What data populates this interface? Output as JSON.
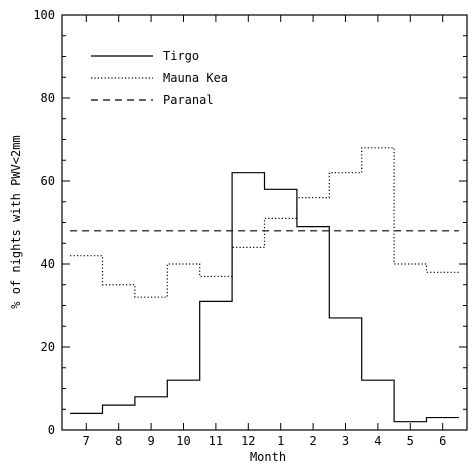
{
  "chart_data": {
    "type": "line",
    "style": "step",
    "xlabel": "Month",
    "ylabel": "% of nights with PWV<2mm",
    "categories": [
      "7",
      "8",
      "9",
      "10",
      "11",
      "12",
      "1",
      "2",
      "3",
      "4",
      "5",
      "6"
    ],
    "ylim": [
      0,
      100
    ],
    "yticks": [
      0,
      20,
      40,
      60,
      80,
      100
    ],
    "grid": false,
    "legend_position": "top-left",
    "series": [
      {
        "name": "Tirgo",
        "line_style": "solid",
        "values": [
          4,
          6,
          8,
          12,
          31,
          62,
          58,
          49,
          27,
          12,
          2,
          3
        ]
      },
      {
        "name": "Mauna Kea",
        "line_style": "dotted",
        "values": [
          42,
          35,
          32,
          40,
          37,
          44,
          51,
          56,
          62,
          68,
          40,
          38
        ]
      },
      {
        "name": "Paranal",
        "line_style": "dashed",
        "values": [
          48,
          48,
          48,
          48,
          48,
          48,
          48,
          48,
          48,
          48,
          48,
          48
        ]
      }
    ]
  }
}
